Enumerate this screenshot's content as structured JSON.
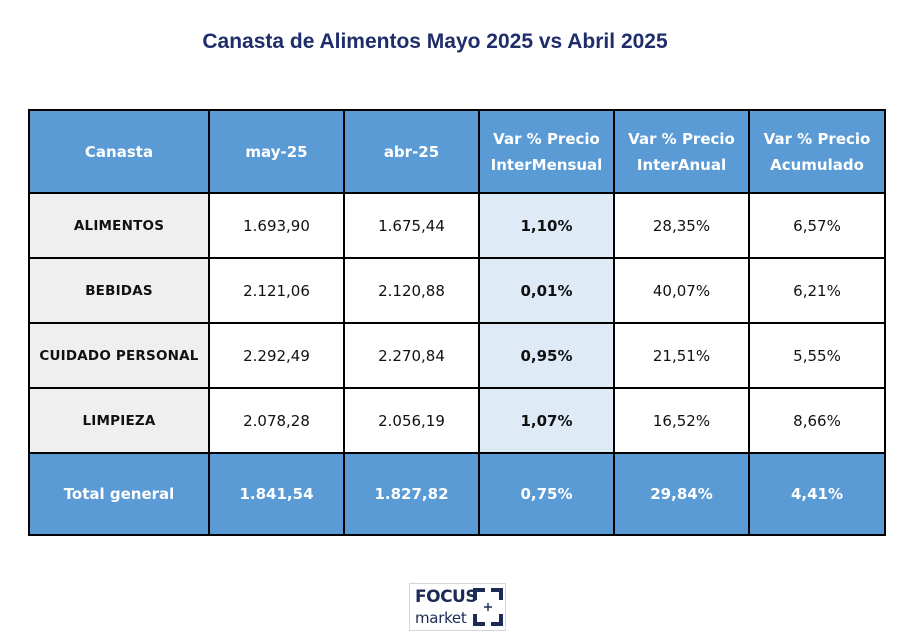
{
  "title": "Canasta de Alimentos Mayo 2025 vs Abril 2025",
  "table": {
    "headers": [
      [
        "Canasta"
      ],
      [
        "may-25"
      ],
      [
        "abr-25"
      ],
      [
        "Var % Precio",
        "InterMensual"
      ],
      [
        "Var % Precio",
        "InterAnual"
      ],
      [
        "Var % Precio",
        "Acumulado"
      ]
    ],
    "rows": [
      [
        "ALIMENTOS",
        "1.693,90",
        "1.675,44",
        "1,10%",
        "28,35%",
        "6,57%"
      ],
      [
        "BEBIDAS",
        "2.121,06",
        "2.120,88",
        "0,01%",
        "40,07%",
        "6,21%"
      ],
      [
        "CUIDADO PERSONAL",
        "2.292,49",
        "2.270,84",
        "0,95%",
        "21,51%",
        "5,55%"
      ],
      [
        "LIMPIEZA",
        "2.078,28",
        "2.056,19",
        "1,07%",
        "16,52%",
        "8,66%"
      ]
    ],
    "total": [
      "Total general",
      "1.841,54",
      "1.827,82",
      "0,75%",
      "29,84%",
      "4,41%"
    ]
  },
  "chart_data": {
    "type": "table",
    "title": "Canasta de Alimentos Mayo 2025 vs Abril 2025",
    "columns": [
      "Canasta",
      "may-25",
      "abr-25",
      "Var % Precio InterMensual",
      "Var % Precio InterAnual",
      "Var % Precio Acumulado"
    ],
    "rows": [
      {
        "Canasta": "ALIMENTOS",
        "may-25": 1693.9,
        "abr-25": 1675.44,
        "InterMensual": 1.1,
        "InterAnual": 28.35,
        "Acumulado": 6.57
      },
      {
        "Canasta": "BEBIDAS",
        "may-25": 2121.06,
        "abr-25": 2120.88,
        "InterMensual": 0.01,
        "InterAnual": 40.07,
        "Acumulado": 6.21
      },
      {
        "Canasta": "CUIDADO PERSONAL",
        "may-25": 2292.49,
        "abr-25": 2270.84,
        "InterMensual": 0.95,
        "InterAnual": 21.51,
        "Acumulado": 5.55
      },
      {
        "Canasta": "LIMPIEZA",
        "may-25": 2078.28,
        "abr-25": 2056.19,
        "InterMensual": 1.07,
        "InterAnual": 16.52,
        "Acumulado": 8.66
      },
      {
        "Canasta": "Total general",
        "may-25": 1841.54,
        "abr-25": 1827.82,
        "InterMensual": 0.75,
        "InterAnual": 29.84,
        "Acumulado": 4.41
      }
    ]
  },
  "colors": {
    "header_bg": "#5b9bd5",
    "title": "#1f2d6b",
    "category_bg": "#efefef",
    "highlight_col_bg": "#deebf7"
  },
  "logo": {
    "line1": "FOCUS",
    "line2": "market",
    "icon": "corner-brackets-plus-icon"
  }
}
